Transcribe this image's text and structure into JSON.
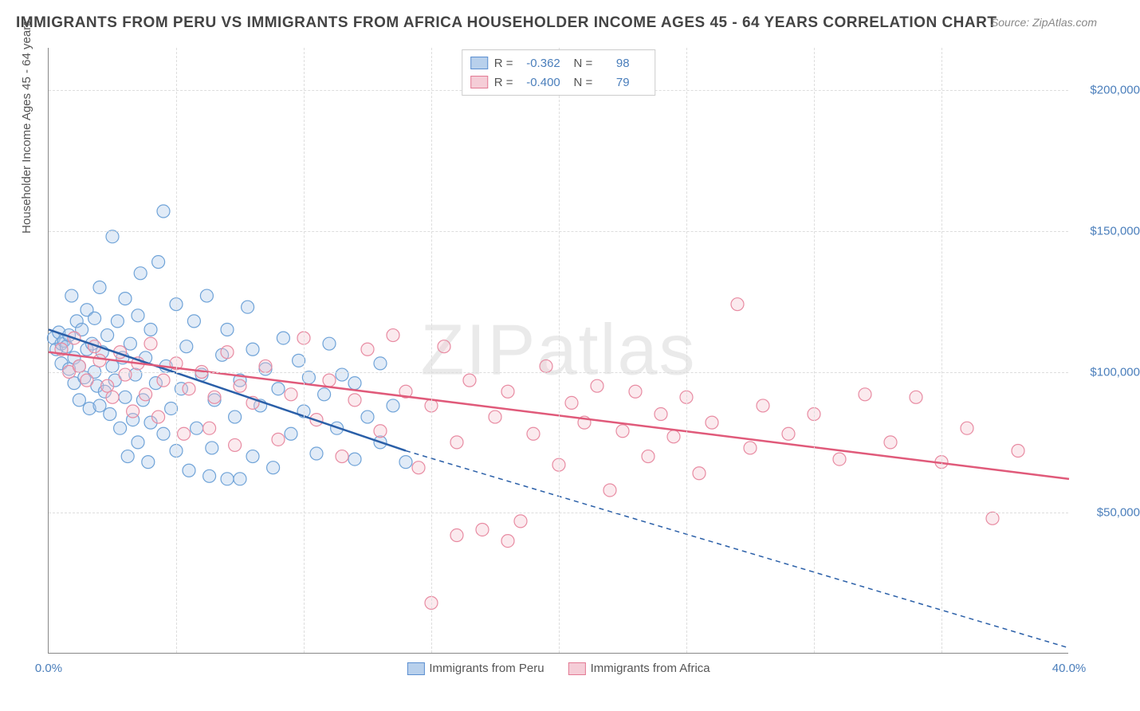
{
  "title": "IMMIGRANTS FROM PERU VS IMMIGRANTS FROM AFRICA HOUSEHOLDER INCOME AGES 45 - 64 YEARS CORRELATION CHART",
  "source": "Source: ZipAtlas.com",
  "watermark": "ZIPatlas",
  "y_axis_title": "Householder Income Ages 45 - 64 years",
  "chart": {
    "type": "scatter",
    "xlim": [
      0,
      40
    ],
    "ylim": [
      0,
      215000
    ],
    "x_tick_labels": {
      "0": "0.0%",
      "40": "40.0%"
    },
    "x_minor_ticks": [
      5,
      10,
      15,
      20,
      25,
      30,
      35
    ],
    "y_ticks": [
      50000,
      100000,
      150000,
      200000
    ],
    "y_tick_labels": {
      "50000": "$50,000",
      "100000": "$100,000",
      "150000": "$150,000",
      "200000": "$200,000"
    },
    "background_color": "#ffffff",
    "grid_color": "#dddddd",
    "marker_radius": 8,
    "marker_fill_opacity": 0.35,
    "marker_stroke_width": 1.2,
    "trend_line_width": 2.5,
    "trend_dash_width": 1.5,
    "series": [
      {
        "name": "Immigrants from Peru",
        "color_fill": "#a8c6e8",
        "color_stroke": "#6fa3d8",
        "swatch_fill": "#b8d0ec",
        "swatch_border": "#5b8fd0",
        "R": "-0.362",
        "N": "98",
        "trend": {
          "x1": 0,
          "y1": 115000,
          "x2_solid": 14,
          "y2_solid": 72000,
          "x2_dash": 40,
          "y2_dash": 2000,
          "color": "#2a5fa8"
        },
        "points": [
          [
            0.2,
            112000
          ],
          [
            0.3,
            108000
          ],
          [
            0.4,
            114000
          ],
          [
            0.5,
            103000
          ],
          [
            0.5,
            110000
          ],
          [
            0.6,
            111000
          ],
          [
            0.7,
            109000
          ],
          [
            0.8,
            113000
          ],
          [
            0.8,
            101000
          ],
          [
            0.9,
            127000
          ],
          [
            1.0,
            105000
          ],
          [
            1.0,
            96000
          ],
          [
            1.1,
            118000
          ],
          [
            1.2,
            102000
          ],
          [
            1.2,
            90000
          ],
          [
            1.3,
            115000
          ],
          [
            1.4,
            98000
          ],
          [
            1.5,
            108000
          ],
          [
            1.5,
            122000
          ],
          [
            1.6,
            87000
          ],
          [
            1.7,
            110000
          ],
          [
            1.8,
            100000
          ],
          [
            1.8,
            119000
          ],
          [
            1.9,
            95000
          ],
          [
            2.0,
            130000
          ],
          [
            2.0,
            88000
          ],
          [
            2.1,
            107000
          ],
          [
            2.2,
            93000
          ],
          [
            2.3,
            113000
          ],
          [
            2.4,
            85000
          ],
          [
            2.5,
            148000
          ],
          [
            2.5,
            102000
          ],
          [
            2.6,
            97000
          ],
          [
            2.7,
            118000
          ],
          [
            2.8,
            80000
          ],
          [
            2.9,
            105000
          ],
          [
            3.0,
            126000
          ],
          [
            3.0,
            91000
          ],
          [
            3.1,
            70000
          ],
          [
            3.2,
            110000
          ],
          [
            3.3,
            83000
          ],
          [
            3.4,
            99000
          ],
          [
            3.5,
            120000
          ],
          [
            3.5,
            75000
          ],
          [
            3.6,
            135000
          ],
          [
            3.7,
            90000
          ],
          [
            3.8,
            105000
          ],
          [
            3.9,
            68000
          ],
          [
            4.0,
            115000
          ],
          [
            4.0,
            82000
          ],
          [
            4.2,
            96000
          ],
          [
            4.3,
            139000
          ],
          [
            4.5,
            78000
          ],
          [
            4.5,
            157000
          ],
          [
            4.6,
            102000
          ],
          [
            4.8,
            87000
          ],
          [
            5.0,
            124000
          ],
          [
            5.0,
            72000
          ],
          [
            5.2,
            94000
          ],
          [
            5.4,
            109000
          ],
          [
            5.5,
            65000
          ],
          [
            5.7,
            118000
          ],
          [
            5.8,
            80000
          ],
          [
            6.0,
            99000
          ],
          [
            6.2,
            127000
          ],
          [
            6.4,
            73000
          ],
          [
            6.5,
            90000
          ],
          [
            6.8,
            106000
          ],
          [
            7.0,
            62000
          ],
          [
            7.0,
            115000
          ],
          [
            7.3,
            84000
          ],
          [
            7.5,
            97000
          ],
          [
            7.8,
            123000
          ],
          [
            8.0,
            70000
          ],
          [
            8.0,
            108000
          ],
          [
            8.3,
            88000
          ],
          [
            8.5,
            101000
          ],
          [
            8.8,
            66000
          ],
          [
            9.0,
            94000
          ],
          [
            9.2,
            112000
          ],
          [
            9.5,
            78000
          ],
          [
            9.8,
            104000
          ],
          [
            10.0,
            86000
          ],
          [
            10.2,
            98000
          ],
          [
            10.5,
            71000
          ],
          [
            10.8,
            92000
          ],
          [
            11.0,
            110000
          ],
          [
            11.3,
            80000
          ],
          [
            11.5,
            99000
          ],
          [
            12.0,
            69000
          ],
          [
            12.0,
            96000
          ],
          [
            12.5,
            84000
          ],
          [
            13.0,
            75000
          ],
          [
            13.0,
            103000
          ],
          [
            13.5,
            88000
          ],
          [
            14.0,
            68000
          ],
          [
            6.3,
            63000
          ],
          [
            7.5,
            62000
          ]
        ]
      },
      {
        "name": "Immigrants from Africa",
        "color_fill": "#f3c3cd",
        "color_stroke": "#e88ba2",
        "swatch_fill": "#f5cdd7",
        "swatch_border": "#e37a94",
        "R": "-0.400",
        "N": "79",
        "trend": {
          "x1": 0,
          "y1": 107000,
          "x2_solid": 40,
          "y2_solid": 62000,
          "x2_dash": 40,
          "y2_dash": 62000,
          "color": "#e05a7a"
        },
        "points": [
          [
            0.5,
            108000
          ],
          [
            0.8,
            100000
          ],
          [
            1.0,
            112000
          ],
          [
            1.2,
            102000
          ],
          [
            1.5,
            97000
          ],
          [
            1.8,
            109000
          ],
          [
            2.0,
            104000
          ],
          [
            2.3,
            95000
          ],
          [
            2.5,
            91000
          ],
          [
            2.8,
            107000
          ],
          [
            3.0,
            99000
          ],
          [
            3.3,
            86000
          ],
          [
            3.5,
            103000
          ],
          [
            3.8,
            92000
          ],
          [
            4.0,
            110000
          ],
          [
            4.3,
            84000
          ],
          [
            4.5,
            97000
          ],
          [
            5.0,
            103000
          ],
          [
            5.3,
            78000
          ],
          [
            5.5,
            94000
          ],
          [
            6.0,
            100000
          ],
          [
            6.3,
            80000
          ],
          [
            6.5,
            91000
          ],
          [
            7.0,
            107000
          ],
          [
            7.3,
            74000
          ],
          [
            7.5,
            95000
          ],
          [
            8.0,
            89000
          ],
          [
            8.5,
            102000
          ],
          [
            9.0,
            76000
          ],
          [
            9.5,
            92000
          ],
          [
            10.0,
            112000
          ],
          [
            10.5,
            83000
          ],
          [
            11.0,
            97000
          ],
          [
            11.5,
            70000
          ],
          [
            12.0,
            90000
          ],
          [
            12.5,
            108000
          ],
          [
            13.0,
            79000
          ],
          [
            13.5,
            113000
          ],
          [
            14.0,
            93000
          ],
          [
            14.5,
            66000
          ],
          [
            15.0,
            88000
          ],
          [
            15.5,
            109000
          ],
          [
            16.0,
            75000
          ],
          [
            16.5,
            97000
          ],
          [
            17.0,
            44000
          ],
          [
            17.5,
            84000
          ],
          [
            18.0,
            93000
          ],
          [
            18.5,
            47000
          ],
          [
            19.0,
            78000
          ],
          [
            19.5,
            102000
          ],
          [
            20.0,
            67000
          ],
          [
            20.5,
            89000
          ],
          [
            21.0,
            82000
          ],
          [
            21.5,
            95000
          ],
          [
            22.0,
            58000
          ],
          [
            22.5,
            79000
          ],
          [
            23.0,
            93000
          ],
          [
            23.5,
            70000
          ],
          [
            24.0,
            85000
          ],
          [
            24.5,
            77000
          ],
          [
            25.0,
            91000
          ],
          [
            25.5,
            64000
          ],
          [
            26.0,
            82000
          ],
          [
            27.0,
            124000
          ],
          [
            27.5,
            73000
          ],
          [
            28.0,
            88000
          ],
          [
            29.0,
            78000
          ],
          [
            30.0,
            85000
          ],
          [
            31.0,
            69000
          ],
          [
            32.0,
            92000
          ],
          [
            33.0,
            75000
          ],
          [
            34.0,
            91000
          ],
          [
            35.0,
            68000
          ],
          [
            36.0,
            80000
          ],
          [
            37.0,
            48000
          ],
          [
            38.0,
            72000
          ],
          [
            15.0,
            18000
          ],
          [
            16.0,
            42000
          ],
          [
            18.0,
            40000
          ]
        ]
      }
    ]
  },
  "legend_bottom": [
    {
      "label": "Immigrants from Peru",
      "fill": "#b8d0ec",
      "border": "#5b8fd0"
    },
    {
      "label": "Immigrants from Africa",
      "fill": "#f5cdd7",
      "border": "#e37a94"
    }
  ]
}
